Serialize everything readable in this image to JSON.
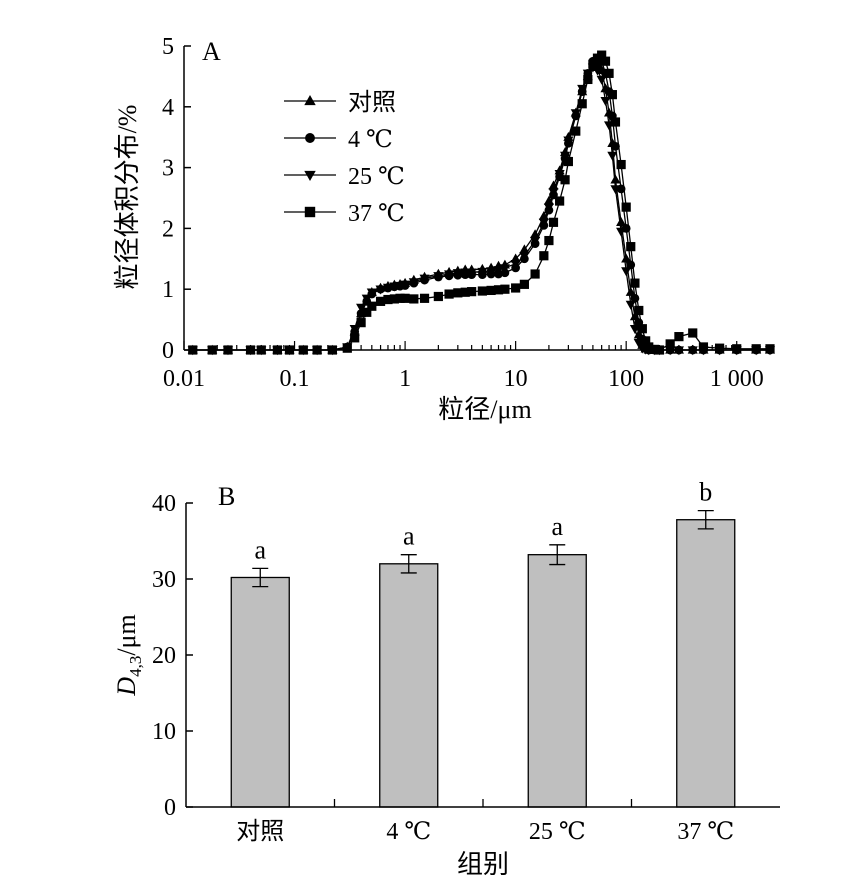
{
  "chart_data": [
    {
      "panel": "A",
      "type": "line",
      "xscale": "log",
      "xlabel": "粒径/μm",
      "ylabel": "粒径体积分布/%",
      "xlim": [
        0.01,
        2000
      ],
      "ylim": [
        0,
        5
      ],
      "xticks": [
        "0.01",
        "0.1",
        "1",
        "10",
        "100",
        "1 000"
      ],
      "yticks": [
        "0",
        "1",
        "2",
        "3",
        "4",
        "5"
      ],
      "legend_position": "top-left",
      "grid": false,
      "series": [
        {
          "name": "对照",
          "marker": "triangle-up",
          "x": [
            0.012,
            0.018,
            0.025,
            0.04,
            0.05,
            0.07,
            0.09,
            0.12,
            0.16,
            0.22,
            0.3,
            0.35,
            0.4,
            0.45,
            0.5,
            0.6,
            0.7,
            0.8,
            0.9,
            1.0,
            1.2,
            1.5,
            2.0,
            2.5,
            3.0,
            3.5,
            4.0,
            5.0,
            6.0,
            7.0,
            8.0,
            10,
            12,
            15,
            18,
            20,
            22,
            25,
            28,
            30,
            35,
            40,
            45,
            50,
            55,
            60,
            65,
            70,
            75,
            80,
            90,
            100,
            110,
            120,
            130,
            140,
            150,
            160,
            180,
            200,
            250,
            300,
            400,
            500,
            700,
            1000,
            1500,
            2000
          ],
          "y": [
            0,
            0,
            0,
            0,
            0,
            0,
            0,
            0,
            0,
            0,
            0.05,
            0.3,
            0.6,
            0.8,
            0.95,
            1.02,
            1.05,
            1.07,
            1.08,
            1.1,
            1.15,
            1.2,
            1.25,
            1.28,
            1.3,
            1.32,
            1.32,
            1.33,
            1.35,
            1.38,
            1.4,
            1.5,
            1.65,
            1.9,
            2.2,
            2.45,
            2.7,
            2.95,
            3.25,
            3.5,
            3.9,
            4.25,
            4.5,
            4.65,
            4.7,
            4.6,
            4.3,
            3.9,
            3.4,
            2.8,
            2.1,
            1.5,
            0.95,
            0.55,
            0.25,
            0.08,
            0.02,
            0,
            0,
            0,
            0,
            0,
            0,
            0,
            0,
            0,
            0,
            0
          ]
        },
        {
          "name": "4 ℃",
          "marker": "circle",
          "x": [
            0.012,
            0.018,
            0.025,
            0.04,
            0.05,
            0.07,
            0.09,
            0.12,
            0.16,
            0.22,
            0.3,
            0.35,
            0.4,
            0.45,
            0.5,
            0.6,
            0.7,
            0.8,
            0.9,
            1.0,
            1.2,
            1.5,
            2.0,
            2.5,
            3.0,
            3.5,
            4.0,
            5.0,
            6.0,
            7.0,
            8.0,
            10,
            12,
            15,
            18,
            20,
            22,
            25,
            28,
            30,
            35,
            40,
            45,
            50,
            55,
            60,
            65,
            70,
            75,
            80,
            90,
            100,
            110,
            120,
            130,
            140,
            150,
            160,
            180,
            200,
            250,
            300,
            400,
            500,
            700,
            1000,
            1500,
            2000
          ],
          "y": [
            0,
            0,
            0,
            0,
            0,
            0,
            0,
            0,
            0,
            0,
            0.05,
            0.3,
            0.6,
            0.8,
            0.92,
            1.0,
            1.02,
            1.04,
            1.05,
            1.06,
            1.1,
            1.15,
            1.2,
            1.22,
            1.23,
            1.24,
            1.24,
            1.24,
            1.25,
            1.25,
            1.27,
            1.35,
            1.5,
            1.75,
            2.05,
            2.3,
            2.55,
            2.85,
            3.15,
            3.4,
            3.85,
            4.25,
            4.55,
            4.75,
            4.8,
            4.75,
            4.55,
            4.25,
            3.85,
            3.35,
            2.65,
            2.0,
            1.4,
            0.85,
            0.45,
            0.18,
            0.05,
            0,
            0,
            0,
            0,
            0,
            0,
            0,
            0,
            0,
            0,
            0
          ]
        },
        {
          "name": "25 ℃",
          "marker": "triangle-down",
          "x": [
            0.012,
            0.018,
            0.025,
            0.04,
            0.05,
            0.07,
            0.09,
            0.12,
            0.16,
            0.22,
            0.3,
            0.35,
            0.4,
            0.45,
            0.5,
            0.6,
            0.7,
            0.8,
            0.9,
            1.0,
            1.2,
            1.5,
            2.0,
            2.5,
            3.0,
            3.5,
            4.0,
            5.0,
            6.0,
            7.0,
            8.0,
            10,
            12,
            15,
            18,
            20,
            22,
            25,
            28,
            30,
            35,
            40,
            45,
            50,
            55,
            60,
            65,
            70,
            75,
            80,
            90,
            100,
            110,
            120,
            130,
            140,
            150,
            160,
            180,
            200,
            250,
            300,
            400,
            500,
            700,
            1000,
            1500,
            2000
          ],
          "y": [
            0,
            0,
            0,
            0,
            0,
            0,
            0,
            0,
            0,
            0,
            0.05,
            0.35,
            0.7,
            0.85,
            0.95,
            1.0,
            1.03,
            1.05,
            1.06,
            1.08,
            1.12,
            1.18,
            1.22,
            1.25,
            1.27,
            1.28,
            1.28,
            1.29,
            1.3,
            1.32,
            1.35,
            1.42,
            1.55,
            1.8,
            2.1,
            2.35,
            2.6,
            2.9,
            3.2,
            3.45,
            3.9,
            4.3,
            4.55,
            4.65,
            4.6,
            4.45,
            4.1,
            3.7,
            3.2,
            2.65,
            1.95,
            1.3,
            0.75,
            0.35,
            0.12,
            0.03,
            0.01,
            0,
            0,
            0,
            0,
            0,
            0,
            0,
            0,
            0,
            0,
            0
          ]
        },
        {
          "name": "37 ℃",
          "marker": "square",
          "x": [
            0.012,
            0.018,
            0.025,
            0.04,
            0.05,
            0.07,
            0.09,
            0.12,
            0.16,
            0.22,
            0.3,
            0.35,
            0.4,
            0.45,
            0.5,
            0.6,
            0.7,
            0.8,
            0.9,
            1.0,
            1.2,
            1.5,
            2.0,
            2.5,
            3.0,
            3.5,
            4.0,
            5.0,
            6.0,
            7.0,
            8.0,
            10,
            12,
            15,
            18,
            20,
            22,
            25,
            28,
            30,
            35,
            40,
            45,
            50,
            55,
            60,
            65,
            70,
            75,
            80,
            90,
            100,
            110,
            120,
            130,
            140,
            150,
            160,
            180,
            200,
            250,
            300,
            400,
            500,
            700,
            1000,
            1500,
            2000
          ],
          "y": [
            0,
            0,
            0,
            0,
            0,
            0,
            0,
            0,
            0,
            0,
            0.03,
            0.2,
            0.45,
            0.62,
            0.72,
            0.8,
            0.83,
            0.84,
            0.85,
            0.85,
            0.84,
            0.85,
            0.88,
            0.92,
            0.94,
            0.95,
            0.96,
            0.97,
            0.98,
            0.99,
            1.0,
            1.02,
            1.08,
            1.25,
            1.55,
            1.8,
            2.1,
            2.45,
            2.8,
            3.1,
            3.6,
            4.05,
            4.45,
            4.7,
            4.8,
            4.85,
            4.75,
            4.55,
            4.2,
            3.75,
            3.05,
            2.35,
            1.7,
            1.1,
            0.65,
            0.35,
            0.15,
            0.05,
            0.01,
            0,
            0.1,
            0.22,
            0.28,
            0.05,
            0.03,
            0.02,
            0.02,
            0.02
          ]
        }
      ]
    },
    {
      "panel": "B",
      "type": "bar",
      "xlabel": "组别",
      "ylabel_main": "D",
      "ylabel_sub": "4,3",
      "ylabel_unit": "/μm",
      "ylim": [
        0,
        40
      ],
      "yticks": [
        "0",
        "10",
        "20",
        "30",
        "40"
      ],
      "categories": [
        "对照",
        "4 ℃",
        "25 ℃",
        "37 ℃"
      ],
      "values": [
        30.2,
        32.0,
        33.2,
        37.8
      ],
      "errors": [
        1.2,
        1.2,
        1.3,
        1.2
      ],
      "significance": [
        "a",
        "a",
        "a",
        "b"
      ],
      "bar_color": "#bfbfbf",
      "grid": false
    }
  ]
}
